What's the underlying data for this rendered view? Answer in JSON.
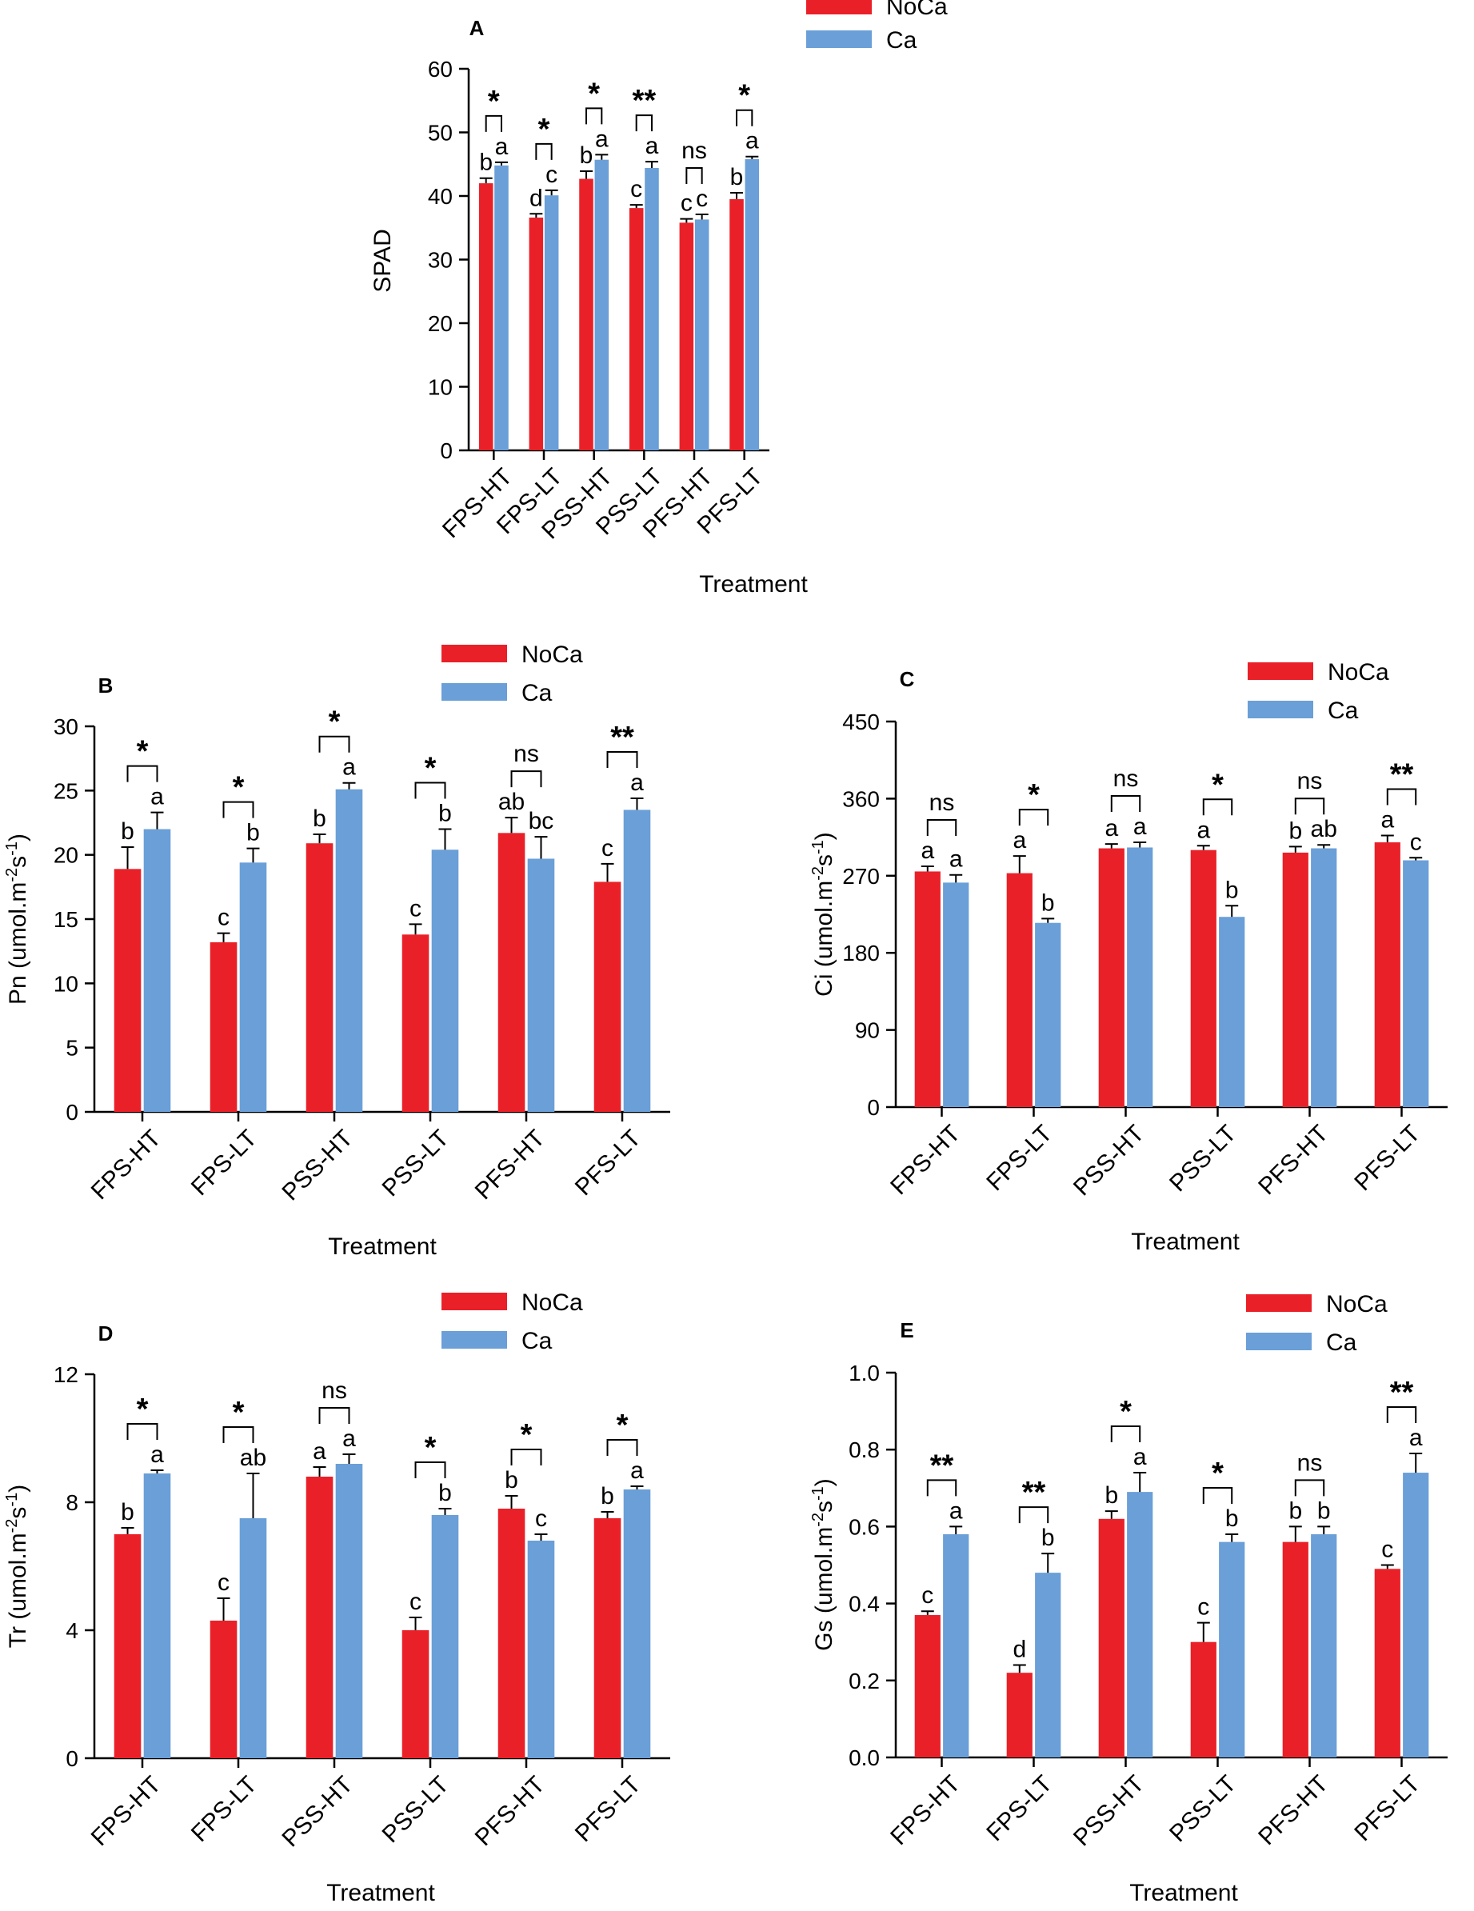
{
  "colors": {
    "noca": "#ea2028",
    "ca": "#6a9fd8",
    "axis": "#000000"
  },
  "chart_data": [
    {
      "id": "A",
      "panel_label": "A",
      "type": "bar",
      "title": "",
      "xlabel": "Treatment",
      "ylabel": "SPAD",
      "ylabel_sup": "",
      "ylabel_tail": "",
      "ylim": [
        0,
        60
      ],
      "yticks": [
        0,
        10,
        20,
        30,
        40,
        50,
        60
      ],
      "categories": [
        "FPS-HT",
        "FPS-LT",
        "PSS-HT",
        "PSS-LT",
        "PFS-HT",
        "PFS-LT"
      ],
      "legend": [
        "NoCa",
        "Ca"
      ],
      "series": [
        {
          "name": "NoCa",
          "values": [
            42.0,
            36.6,
            42.7,
            38.1,
            35.8,
            39.5
          ],
          "errors": [
            0.8,
            0.6,
            1.2,
            0.5,
            0.6,
            1.0
          ],
          "letters": [
            "b",
            "d",
            "b",
            "c",
            "c",
            "b"
          ]
        },
        {
          "name": "Ca",
          "values": [
            44.8,
            40.1,
            45.7,
            44.4,
            36.3,
            45.8
          ],
          "errors": [
            0.5,
            0.8,
            0.8,
            1.0,
            0.8,
            0.4
          ],
          "letters": [
            "a",
            "c",
            "a",
            "a",
            "c",
            "a"
          ]
        }
      ],
      "significance": [
        "*",
        "*",
        "*",
        "**",
        "ns",
        "*"
      ]
    },
    {
      "id": "B",
      "panel_label": "B",
      "type": "bar",
      "title": "",
      "xlabel": "Treatment",
      "ylabel": "Pn (umol.m",
      "ylabel_sup": "-2",
      "ylabel_sup2": "-1",
      "ylabel_mid": "s",
      "ylabel_tail": ")",
      "ylim": [
        0,
        30
      ],
      "yticks": [
        0,
        5,
        10,
        15,
        20,
        25,
        30
      ],
      "categories": [
        "FPS-HT",
        "FPS-LT",
        "PSS-HT",
        "PSS-LT",
        "PFS-HT",
        "PFS-LT"
      ],
      "legend": [
        "NoCa",
        "Ca"
      ],
      "series": [
        {
          "name": "NoCa",
          "values": [
            18.9,
            13.2,
            20.9,
            13.8,
            21.7,
            17.9
          ],
          "errors": [
            1.7,
            0.7,
            0.7,
            0.8,
            1.2,
            1.4
          ],
          "letters": [
            "b",
            "c",
            "b",
            "c",
            "ab",
            "c"
          ]
        },
        {
          "name": "Ca",
          "values": [
            22.0,
            19.4,
            25.1,
            20.4,
            19.7,
            23.5
          ],
          "errors": [
            1.3,
            1.1,
            0.5,
            1.6,
            1.7,
            0.9
          ],
          "letters": [
            "a",
            "b",
            "a",
            "b",
            "bc",
            "a"
          ]
        }
      ],
      "significance": [
        "*",
        "*",
        "*",
        "*",
        "ns",
        "**"
      ]
    },
    {
      "id": "C",
      "panel_label": "C",
      "type": "bar",
      "title": "",
      "xlabel": "Treatment",
      "ylabel": "Ci (umol.m",
      "ylabel_sup": "-2",
      "ylabel_sup2": "-1",
      "ylabel_mid": "s",
      "ylabel_tail": ")",
      "ylim": [
        0,
        450
      ],
      "yticks": [
        0,
        90,
        180,
        270,
        360,
        450
      ],
      "categories": [
        "FPS-HT",
        "FPS-LT",
        "PSS-HT",
        "PSS-LT",
        "PFS-HT",
        "PFS-LT"
      ],
      "legend": [
        "NoCa",
        "Ca"
      ],
      "series": [
        {
          "name": "NoCa",
          "values": [
            275,
            273,
            302,
            300,
            297,
            309
          ],
          "errors": [
            6,
            20,
            5,
            5,
            7,
            8
          ],
          "letters": [
            "a",
            "a",
            "a",
            "a",
            "b",
            "a"
          ]
        },
        {
          "name": "Ca",
          "values": [
            262,
            215,
            303,
            222,
            302,
            288
          ],
          "errors": [
            9,
            5,
            6,
            13,
            4,
            3
          ],
          "letters": [
            "a",
            "b",
            "a",
            "b",
            "ab",
            "c"
          ]
        }
      ],
      "significance": [
        "ns",
        "*",
        "ns",
        "*",
        "ns",
        "**"
      ]
    },
    {
      "id": "D",
      "panel_label": "D",
      "type": "bar",
      "title": "",
      "xlabel": "Treatment",
      "ylabel": "Tr (umol.m",
      "ylabel_sup": "-2",
      "ylabel_sup2": "-1",
      "ylabel_mid": "s",
      "ylabel_tail": ")",
      "ylim": [
        0,
        12
      ],
      "yticks": [
        0,
        4,
        8,
        12
      ],
      "categories": [
        "FPS-HT",
        "FPS-LT",
        "PSS-HT",
        "PSS-LT",
        "PFS-HT",
        "PFS-LT"
      ],
      "legend": [
        "NoCa",
        "Ca"
      ],
      "series": [
        {
          "name": "NoCa",
          "values": [
            7.0,
            4.3,
            8.8,
            4.0,
            7.8,
            7.5
          ],
          "errors": [
            0.2,
            0.7,
            0.3,
            0.4,
            0.4,
            0.2
          ],
          "letters": [
            "b",
            "c",
            "a",
            "c",
            "b",
            "b"
          ]
        },
        {
          "name": "Ca",
          "values": [
            8.9,
            7.5,
            9.2,
            7.6,
            6.8,
            8.4
          ],
          "errors": [
            0.1,
            1.4,
            0.3,
            0.2,
            0.2,
            0.1
          ],
          "letters": [
            "a",
            "ab",
            "a",
            "b",
            "c",
            "a"
          ]
        }
      ],
      "significance": [
        "*",
        "*",
        "ns",
        "*",
        "*",
        "*"
      ]
    },
    {
      "id": "E",
      "panel_label": "E",
      "type": "bar",
      "title": "",
      "xlabel": "Treatment",
      "ylabel": "Gs (umol.m",
      "ylabel_sup": "-2",
      "ylabel_sup2": "-1",
      "ylabel_mid": "s",
      "ylabel_tail": ")",
      "ylim": [
        0,
        1.0
      ],
      "yticks": [
        "0.0",
        "0.2",
        "0.4",
        "0.6",
        "0.8",
        "1.0"
      ],
      "categories": [
        "FPS-HT",
        "FPS-LT",
        "PSS-HT",
        "PSS-LT",
        "PFS-HT",
        "PFS-LT"
      ],
      "legend": [
        "NoCa",
        "Ca"
      ],
      "series": [
        {
          "name": "NoCa",
          "values": [
            0.37,
            0.22,
            0.62,
            0.3,
            0.56,
            0.49
          ],
          "errors": [
            0.01,
            0.02,
            0.02,
            0.05,
            0.04,
            0.01
          ],
          "letters": [
            "c",
            "d",
            "b",
            "c",
            "b",
            "c"
          ]
        },
        {
          "name": "Ca",
          "values": [
            0.58,
            0.48,
            0.69,
            0.56,
            0.58,
            0.74
          ],
          "errors": [
            0.02,
            0.05,
            0.05,
            0.02,
            0.02,
            0.05
          ],
          "letters": [
            "a",
            "b",
            "a",
            "b",
            "b",
            "a"
          ]
        }
      ],
      "significance": [
        "**",
        "**",
        "*",
        "*",
        "ns",
        "**"
      ]
    }
  ]
}
